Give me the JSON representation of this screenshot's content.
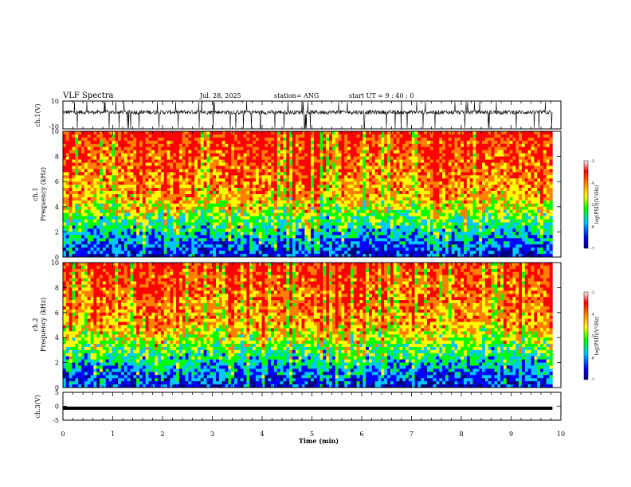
{
  "header": {
    "title": "VLF Spectra",
    "date": "Jul. 28, 2025",
    "station": "station= ANG",
    "start_ut": "start  UT  =   9  : 40 : 0"
  },
  "chart_data": [
    {
      "type": "line",
      "panel": "ch1-waveform",
      "ylabel": "ch.1(V)",
      "ylim": [
        -10,
        10
      ],
      "yticks": [
        "10",
        "-10"
      ],
      "description_of_series": "dense noisy waveform centered near +2 V with frequent spikes to both limits",
      "color": "#000000"
    },
    {
      "type": "heatmap",
      "panel": "ch1-spectrogram",
      "ylabel": "ch.1\nFrequency (kHz)",
      "ylim": [
        0,
        10
      ],
      "yticks": [
        "10",
        "8",
        "6",
        "4",
        "2",
        "0"
      ],
      "colorbar": {
        "label": "log(PSD)(V²/Hz)",
        "ticks": [
          "-3",
          "-4",
          "-5",
          "-6",
          "-7"
        ],
        "range": [
          -7,
          -3
        ],
        "colors": [
          "#000080",
          "#0000ff",
          "#00c8ff",
          "#00ff00",
          "#ffff00",
          "#ff8000",
          "#ff0000",
          "#ffffff"
        ]
      }
    },
    {
      "type": "heatmap",
      "panel": "ch2-spectrogram",
      "ylabel": "ch.2\nFrequency (kHz)",
      "ylim": [
        0,
        10
      ],
      "yticks": [
        "10",
        "8",
        "6",
        "4",
        "2",
        "0"
      ],
      "colorbar": {
        "label": "log(PSD)(V²/Hz)",
        "ticks": [
          "-3",
          "-4",
          "-5",
          "-6",
          "-7"
        ],
        "range": [
          -7,
          -3
        ],
        "colors": [
          "#000080",
          "#0000ff",
          "#00c8ff",
          "#00ff00",
          "#ffff00",
          "#ff8000",
          "#ff0000",
          "#ffffff"
        ]
      }
    },
    {
      "type": "line",
      "panel": "ch3-waveform",
      "ylabel": "ch.3(V)",
      "ylim": [
        -5,
        5
      ],
      "yticks": [
        "5",
        "0",
        "-5"
      ],
      "x": [
        0,
        9.83
      ],
      "y": [
        -0.7,
        -0.7
      ],
      "color": "#000000"
    }
  ],
  "x_axis": {
    "label": "Time (min)",
    "range": [
      0,
      10
    ],
    "ticks": [
      "0",
      "1",
      "2",
      "3",
      "4",
      "5",
      "6",
      "7",
      "8",
      "9",
      "10"
    ]
  }
}
